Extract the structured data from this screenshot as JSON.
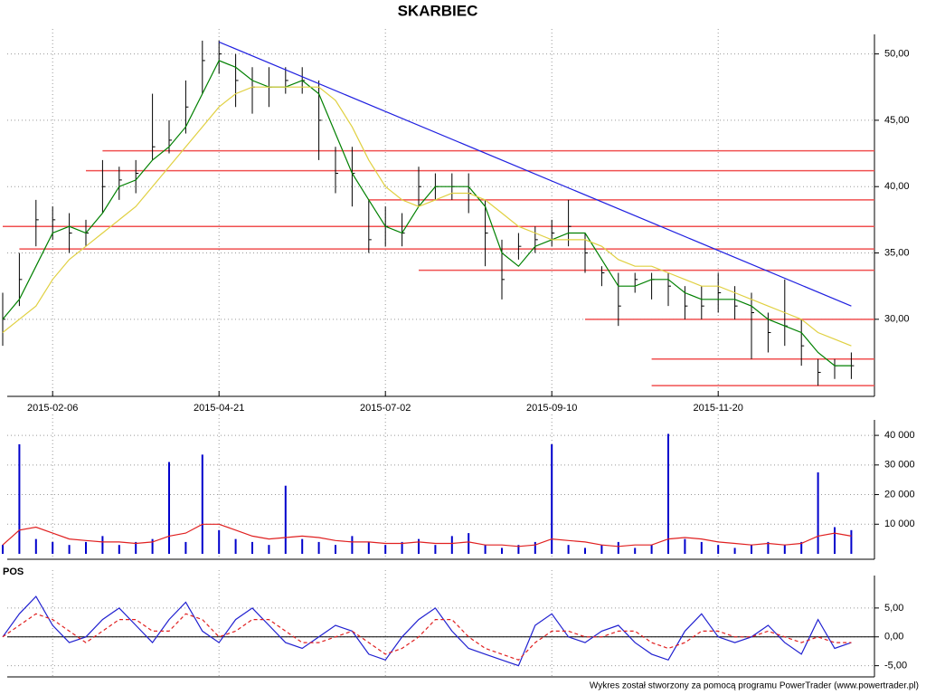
{
  "chart_data": [
    {
      "type": "ohlc",
      "title": "SKARBIEC",
      "x": [
        null,
        null,
        null,
        "2015-02-06",
        null,
        null,
        null,
        null,
        null,
        null,
        null,
        null,
        null,
        "2015-04-21",
        null,
        null,
        null,
        null,
        null,
        null,
        null,
        null,
        null,
        "2015-07-02",
        null,
        null,
        null,
        null,
        null,
        null,
        null,
        null,
        null,
        "2015-09-10",
        null,
        null,
        null,
        null,
        null,
        null,
        null,
        null,
        null,
        "2015-11-20",
        null,
        null,
        null,
        null,
        null,
        null,
        null,
        null
      ],
      "high": [
        32,
        35,
        39,
        38.5,
        38,
        37.5,
        42,
        41.5,
        42,
        47,
        45,
        48,
        51,
        51,
        50,
        49,
        49,
        49,
        49,
        48,
        43,
        43,
        39,
        38.5,
        38,
        41.5,
        41,
        41,
        41,
        39,
        36,
        36.5,
        37,
        37.5,
        39,
        36.5,
        34,
        33.5,
        33.5,
        33.5,
        33.5,
        32.5,
        32.5,
        33.5,
        32.5,
        32,
        30.5,
        33,
        30,
        27,
        27,
        27.5
      ],
      "low": [
        28,
        31,
        35.5,
        36,
        35,
        35.5,
        38,
        39,
        39.5,
        42,
        42.5,
        44,
        47,
        48.5,
        46,
        45.5,
        46,
        47,
        47,
        42,
        39.5,
        38.5,
        35,
        35.5,
        35.5,
        38.5,
        39,
        39,
        38,
        34,
        31.5,
        34.5,
        35,
        35.5,
        35.5,
        33.5,
        32.5,
        29.5,
        32,
        31.5,
        31,
        30,
        30,
        30.5,
        30,
        27,
        27.5,
        28,
        26.5,
        25,
        25.5,
        25.5
      ],
      "close": [
        30,
        33,
        37.5,
        37.5,
        36.5,
        36.5,
        40,
        40.5,
        41,
        43,
        43.5,
        46,
        49.5,
        50,
        48,
        47.5,
        47.5,
        48,
        48,
        45,
        41,
        41,
        36,
        37,
        36.5,
        40,
        40,
        40,
        39.5,
        36.5,
        33,
        35.5,
        36,
        36.5,
        37,
        35,
        33.5,
        31,
        33,
        33,
        32.5,
        31,
        31,
        32,
        31,
        30.5,
        29,
        29.5,
        28,
        26,
        26.5,
        26.5
      ],
      "bar_color": "#000000",
      "series": [
        {
          "color": "#008000",
          "values": [
            30,
            31.5,
            34,
            36.5,
            37,
            36.5,
            38,
            40,
            40.5,
            42,
            43,
            44.5,
            47,
            49.5,
            49,
            48,
            47.5,
            47.5,
            48,
            47,
            44,
            41,
            39,
            37,
            36.5,
            38.5,
            40,
            40,
            40,
            38.5,
            35,
            34,
            35.5,
            36,
            36.5,
            36.5,
            34.5,
            32.5,
            32.5,
            33,
            33,
            32,
            31.5,
            31.5,
            31.5,
            31,
            30,
            29.5,
            29,
            27.5,
            26.5,
            26.5
          ]
        },
        {
          "color": "#e0d040",
          "values": [
            29,
            30,
            31,
            33,
            34.5,
            35.5,
            36.5,
            37.5,
            38.5,
            40,
            41.5,
            43,
            44.5,
            46,
            47,
            47.5,
            47.5,
            47.5,
            47.5,
            47.5,
            46.5,
            44.5,
            42,
            40,
            39,
            38.5,
            39,
            39.5,
            39.5,
            39,
            38,
            37,
            36.5,
            36,
            36,
            36,
            35.5,
            34.5,
            34,
            34,
            33.5,
            33,
            32.5,
            32.5,
            32,
            31.5,
            31,
            30.5,
            30,
            29,
            28.5,
            28
          ]
        }
      ],
      "levels": {
        "color": "#f05050",
        "values": [
          42.7,
          41.2,
          39.0,
          37.0,
          35.3,
          33.7,
          30.0,
          27.0,
          25.0
        ],
        "from": [
          6,
          5,
          22,
          0,
          1,
          25,
          35,
          39,
          39
        ]
      },
      "trendline": {
        "color": "#2020e0",
        "x": [
          13,
          51
        ],
        "values": [
          50.9,
          31.0
        ]
      },
      "ylim": [
        24.6,
        51.2
      ],
      "yticks": [
        {
          "value": 30,
          "label": "30,00"
        },
        {
          "value": 35,
          "label": "35,00"
        },
        {
          "value": 40,
          "label": "40,00"
        },
        {
          "value": 45,
          "label": "45,00"
        },
        {
          "value": 50,
          "label": "50,00"
        }
      ],
      "grid": true
    },
    {
      "type": "bar",
      "color": "#0000cc",
      "values": [
        3000,
        37000,
        5000,
        4000,
        3000,
        4000,
        6000,
        3000,
        4000,
        5000,
        31000,
        4000,
        33500,
        8000,
        5000,
        4000,
        3000,
        23000,
        5000,
        4000,
        3000,
        6000,
        4000,
        3000,
        4000,
        5000,
        3000,
        6000,
        7000,
        3000,
        2000,
        3000,
        4000,
        37000,
        3000,
        2000,
        3000,
        4000,
        2000,
        3000,
        40500,
        5000,
        4000,
        3000,
        2000,
        3000,
        4000,
        3000,
        4000,
        27500,
        9000,
        8000
      ],
      "series": [
        {
          "color": "#e02020",
          "values": [
            3000,
            8000,
            9000,
            7000,
            5000,
            4500,
            4000,
            4000,
            3500,
            4000,
            6000,
            7000,
            10000,
            10000,
            8000,
            6000,
            5000,
            5500,
            6000,
            5500,
            4500,
            4000,
            4000,
            3500,
            3500,
            4000,
            3500,
            3500,
            4000,
            3000,
            3000,
            2500,
            3000,
            5000,
            4500,
            4000,
            3000,
            2500,
            3000,
            3000,
            5000,
            5500,
            5000,
            4000,
            3500,
            3000,
            3500,
            3000,
            3500,
            6000,
            7000,
            6000
          ]
        }
      ],
      "ylim": [
        0,
        44000
      ],
      "yticks": [
        {
          "value": 10000,
          "label": "10 000"
        },
        {
          "value": 20000,
          "label": "20 000"
        },
        {
          "value": 30000,
          "label": "30 000"
        },
        {
          "value": 40000,
          "label": "40 000"
        }
      ],
      "grid": true
    },
    {
      "type": "line",
      "title": "POS",
      "series": [
        {
          "color": "#2020d0",
          "dashed": false,
          "values": [
            0,
            4,
            7,
            2,
            -1,
            0,
            3,
            5,
            2,
            -1,
            3,
            6,
            1,
            -1,
            3,
            5,
            2,
            -1,
            -2,
            0,
            2,
            1,
            -3,
            -4,
            0,
            3,
            5,
            1,
            -2,
            -3,
            -4,
            -5,
            2,
            4,
            0,
            -1,
            1,
            2,
            -1,
            -3,
            -4,
            1,
            4,
            0,
            -1,
            0,
            2,
            -1,
            -3,
            3,
            -2,
            -1
          ]
        },
        {
          "color": "#e02020",
          "dashed": true,
          "values": [
            0,
            2,
            4,
            3,
            1,
            -1,
            1,
            3,
            3,
            1,
            1,
            4,
            3,
            0,
            1,
            3,
            3,
            1,
            -1,
            -1,
            0,
            1,
            -1,
            -3,
            -2,
            0,
            3,
            3,
            0,
            -2,
            -3,
            -4,
            -1,
            1,
            1,
            0,
            0,
            1,
            1,
            -1,
            -2,
            -1,
            1,
            1,
            0,
            0,
            1,
            0,
            -1,
            0,
            -1,
            -1
          ]
        }
      ],
      "ylim": [
        -6,
        10
      ],
      "yticks": [
        {
          "value": -5,
          "label": "-5,00"
        },
        {
          "value": 0,
          "label": "0,00"
        },
        {
          "value": 5,
          "label": "5,00"
        }
      ],
      "zero_line": true,
      "grid": true
    }
  ],
  "footer": "Wykres został stworzony za pomocą programu PowerTrader (www.powertrader.pl)"
}
